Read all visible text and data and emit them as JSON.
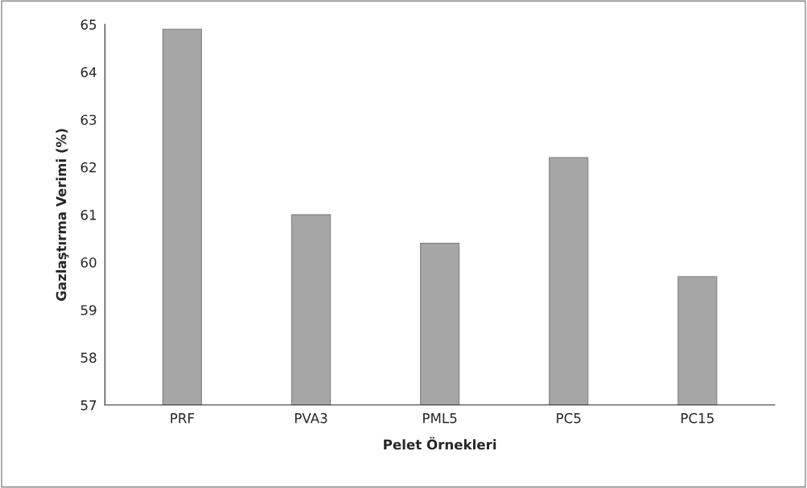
{
  "chart_data": {
    "type": "bar",
    "xlabel": "Pelet Örnekleri",
    "ylabel": "Gazlaştırma Verimi (%)",
    "categories": [
      "PRF",
      "PVA3",
      "PML5",
      "PC5",
      "PC15"
    ],
    "values": [
      64.9,
      61.0,
      60.4,
      62.2,
      59.7
    ],
    "color": "#a6a6a6",
    "ylim": [
      57,
      65
    ],
    "yticks": [
      57,
      58,
      59,
      60,
      61,
      62,
      63,
      64,
      65
    ],
    "grid": false
  }
}
